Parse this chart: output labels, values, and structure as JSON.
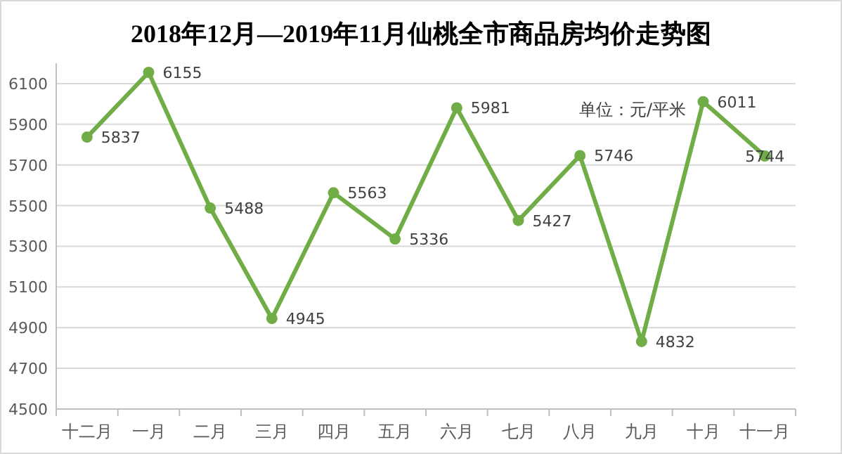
{
  "chart_data": {
    "type": "line",
    "title": "2018年12月—2019年11月仙桃全市商品房均价走势图",
    "categories": [
      "十二月",
      "一月",
      "二月",
      "三月",
      "四月",
      "五月",
      "六月",
      "七月",
      "八月",
      "九月",
      "十月",
      "十一月"
    ],
    "series": [
      {
        "color": "#70ad47",
        "values": [
          5837,
          6155,
          5488,
          4945,
          5563,
          5336,
          5981,
          5427,
          5746,
          4832,
          6011,
          5744
        ]
      }
    ],
    "ylim": [
      4500,
      6200
    ],
    "yticks": [
      4500,
      4700,
      4900,
      5100,
      5300,
      5500,
      5700,
      5900,
      6100
    ],
    "grid": "y",
    "marker": "circle",
    "line_style": "solid",
    "data_labels": true,
    "annotations": [
      "单位：元/平米"
    ]
  }
}
